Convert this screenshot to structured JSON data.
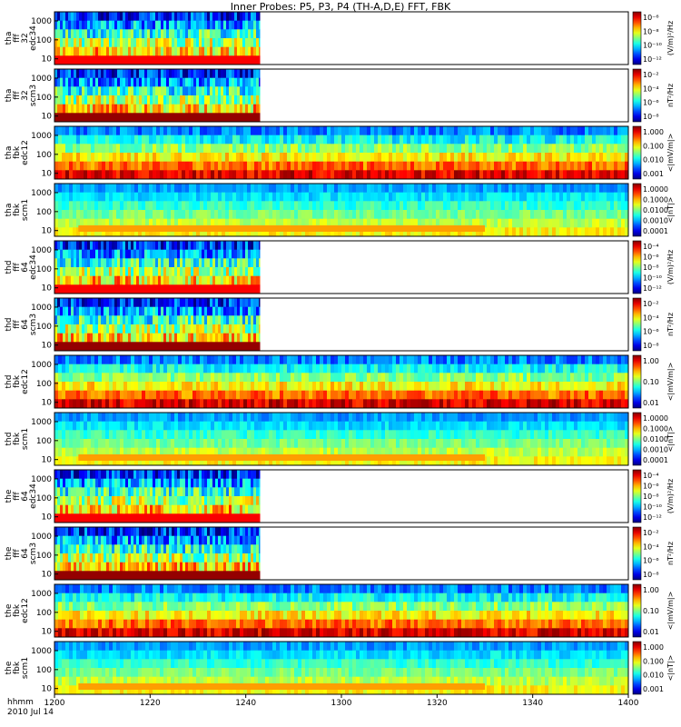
{
  "title": "Inner Probes: P5, P3, P4 (TH-A,D,E) FFT, FBK",
  "time_axis": {
    "prefix": "hhmm",
    "date": "2010 Jul 14",
    "ticks": [
      "1200",
      "1220",
      "1240",
      "1300",
      "1320",
      "1340",
      "1400"
    ]
  },
  "chart_data": [
    {
      "type": "heatmap",
      "probe": "tha",
      "ylabel": [
        "tha",
        "fff",
        "32",
        "edc34"
      ],
      "yticks": [
        "1000",
        "100",
        "10"
      ],
      "colorbar": {
        "unit": "(V/m)²/Hz",
        "ticks": [
          "10⁻⁶",
          "10⁻⁸",
          "10⁻¹⁰",
          "10⁻¹²"
        ]
      },
      "data_coverage": {
        "start": "1200",
        "end": "1243"
      }
    },
    {
      "type": "heatmap",
      "probe": "tha",
      "ylabel": [
        "tha",
        "fff",
        "32",
        "scm3"
      ],
      "yticks": [
        "1000",
        "100",
        "10"
      ],
      "colorbar": {
        "unit": "nT²/Hz",
        "ticks": [
          "10⁻²",
          "10⁻⁴",
          "10⁻⁶",
          "10⁻⁸"
        ]
      },
      "data_coverage": {
        "start": "1200",
        "end": "1243"
      }
    },
    {
      "type": "heatmap",
      "probe": "tha",
      "ylabel": [
        "tha",
        "fbk",
        "edc12"
      ],
      "yticks": [
        "1000",
        "100",
        "10"
      ],
      "colorbar": {
        "unit": "<|mV/m|>",
        "ticks": [
          "1.000",
          "0.100",
          "0.010",
          "0.001"
        ]
      },
      "data_coverage": {
        "start": "1200",
        "end": "1400"
      }
    },
    {
      "type": "heatmap",
      "probe": "tha",
      "ylabel": [
        "tha",
        "fbk",
        "scm1"
      ],
      "yticks": [
        "1000",
        "100",
        "10"
      ],
      "colorbar": {
        "unit": "<|nT|>",
        "ticks": [
          "1.0000",
          "0.1000",
          "0.0100",
          "0.0010",
          "0.0001"
        ]
      },
      "data_coverage": {
        "start": "1200",
        "end": "1400"
      }
    },
    {
      "type": "heatmap",
      "probe": "thd",
      "ylabel": [
        "thd",
        "fff",
        "64",
        "edc34"
      ],
      "yticks": [
        "1000",
        "100",
        "10"
      ],
      "colorbar": {
        "unit": "(V/m)²/Hz",
        "ticks": [
          "10⁻⁴",
          "10⁻⁶",
          "10⁻⁸",
          "10⁻¹⁰",
          "10⁻¹²"
        ]
      },
      "data_coverage": {
        "start": "1200",
        "end": "1243"
      }
    },
    {
      "type": "heatmap",
      "probe": "thd",
      "ylabel": [
        "thd",
        "fff",
        "64",
        "scm3"
      ],
      "yticks": [
        "1000",
        "100",
        "10"
      ],
      "colorbar": {
        "unit": "nT²/Hz",
        "ticks": [
          "10⁻²",
          "10⁻⁴",
          "10⁻⁶",
          "10⁻⁸"
        ]
      },
      "data_coverage": {
        "start": "1200",
        "end": "1243"
      }
    },
    {
      "type": "heatmap",
      "probe": "thd",
      "ylabel": [
        "thd",
        "fbk",
        "edc12"
      ],
      "yticks": [
        "1000",
        "100",
        "10"
      ],
      "colorbar": {
        "unit": "<|mV/m|>",
        "ticks": [
          "1.00",
          "0.10",
          "0.01"
        ]
      },
      "data_coverage": {
        "start": "1200",
        "end": "1400"
      }
    },
    {
      "type": "heatmap",
      "probe": "thd",
      "ylabel": [
        "thd",
        "fbk",
        "scm1"
      ],
      "yticks": [
        "1000",
        "100",
        "10"
      ],
      "colorbar": {
        "unit": "<|nT|>",
        "ticks": [
          "1.0000",
          "0.1000",
          "0.0100",
          "0.0010",
          "0.0001"
        ]
      },
      "data_coverage": {
        "start": "1200",
        "end": "1400"
      }
    },
    {
      "type": "heatmap",
      "probe": "the",
      "ylabel": [
        "the",
        "fff",
        "64",
        "edc34"
      ],
      "yticks": [
        "1000",
        "100",
        "10"
      ],
      "colorbar": {
        "unit": "(V/m)²/Hz",
        "ticks": [
          "10⁻⁴",
          "10⁻⁶",
          "10⁻⁸",
          "10⁻¹⁰",
          "10⁻¹²"
        ]
      },
      "data_coverage": {
        "start": "1200",
        "end": "1243"
      }
    },
    {
      "type": "heatmap",
      "probe": "the",
      "ylabel": [
        "the",
        "fff",
        "64",
        "scm3"
      ],
      "yticks": [
        "1000",
        "100",
        "10"
      ],
      "colorbar": {
        "unit": "nT²/Hz",
        "ticks": [
          "10⁻²",
          "10⁻⁴",
          "10⁻⁶",
          "10⁻⁸"
        ]
      },
      "data_coverage": {
        "start": "1200",
        "end": "1243"
      }
    },
    {
      "type": "heatmap",
      "probe": "the",
      "ylabel": [
        "the",
        "fbk",
        "edc12"
      ],
      "yticks": [
        "1000",
        "100",
        "10"
      ],
      "colorbar": {
        "unit": "<|mV/m|>",
        "ticks": [
          "1.00",
          "0.10",
          "0.01"
        ]
      },
      "data_coverage": {
        "start": "1200",
        "end": "1400"
      }
    },
    {
      "type": "heatmap",
      "probe": "the",
      "ylabel": [
        "the",
        "fbk",
        "scm1"
      ],
      "yticks": [
        "1000",
        "100",
        "10"
      ],
      "colorbar": {
        "unit": "<|nT|>",
        "ticks": [
          "1.000",
          "0.100",
          "0.010",
          "0.001"
        ]
      },
      "data_coverage": {
        "start": "1200",
        "end": "1400"
      }
    }
  ],
  "colors": {
    "low": "#2a0070",
    "mid": "#00c8ff",
    "high": "#d00000"
  }
}
